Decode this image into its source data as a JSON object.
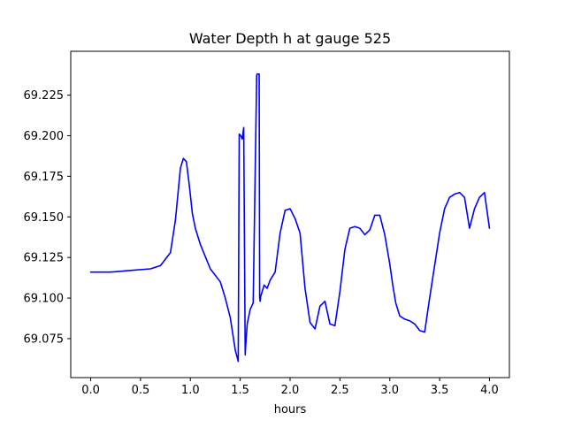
{
  "chart_data": {
    "type": "line",
    "title": "Water Depth h at gauge 525",
    "xlabel": "hours",
    "ylabel": "",
    "xlim": [
      -0.2,
      4.2
    ],
    "ylim": [
      69.051,
      69.252
    ],
    "grid": false,
    "legend": "none",
    "xticks": [
      0.0,
      0.5,
      1.0,
      1.5,
      2.0,
      2.5,
      3.0,
      3.5,
      4.0
    ],
    "xtick_labels": [
      "0.0",
      "0.5",
      "1.0",
      "1.5",
      "2.0",
      "2.5",
      "3.0",
      "3.5",
      "4.0"
    ],
    "yticks": [
      69.075,
      69.1,
      69.125,
      69.15,
      69.175,
      69.2,
      69.225
    ],
    "ytick_labels": [
      "69.075",
      "69.100",
      "69.125",
      "69.150",
      "69.175",
      "69.200",
      "69.225"
    ],
    "colors": {
      "line": "#0000ff",
      "axes": "#000000",
      "background": "#ffffff"
    },
    "series": [
      {
        "x": [
          0.0,
          0.2,
          0.4,
          0.6,
          0.7,
          0.8,
          0.85,
          0.9,
          0.93,
          0.96,
          0.99,
          1.02,
          1.05,
          1.1,
          1.2,
          1.3,
          1.35,
          1.4,
          1.45,
          1.48,
          1.49,
          1.505,
          1.52,
          1.535,
          1.55,
          1.555,
          1.57,
          1.6,
          1.63,
          1.665,
          1.67,
          1.69,
          1.695,
          1.7,
          1.705,
          1.72,
          1.74,
          1.77,
          1.8,
          1.85,
          1.9,
          1.95,
          2.0,
          2.05,
          2.1,
          2.15,
          2.2,
          2.25,
          2.3,
          2.35,
          2.4,
          2.45,
          2.5,
          2.55,
          2.6,
          2.65,
          2.7,
          2.75,
          2.8,
          2.85,
          2.9,
          2.95,
          3.0,
          3.03,
          3.06,
          3.1,
          3.15,
          3.2,
          3.25,
          3.3,
          3.35,
          3.4,
          3.45,
          3.5,
          3.55,
          3.6,
          3.65,
          3.7,
          3.75,
          3.8,
          3.85,
          3.9,
          3.95,
          4.0
        ],
        "y": [
          69.116,
          69.116,
          69.117,
          69.118,
          69.12,
          69.128,
          69.148,
          69.18,
          69.186,
          69.184,
          69.169,
          69.152,
          69.143,
          69.133,
          69.118,
          69.11,
          69.1,
          69.088,
          69.068,
          69.061,
          69.201,
          69.2,
          69.198,
          69.205,
          69.065,
          69.071,
          69.084,
          69.093,
          69.097,
          69.237,
          69.238,
          69.238,
          69.1,
          69.098,
          69.101,
          69.104,
          69.108,
          69.106,
          69.111,
          69.116,
          69.14,
          69.154,
          69.155,
          69.149,
          69.14,
          69.106,
          69.085,
          69.081,
          69.095,
          69.098,
          69.084,
          69.083,
          69.104,
          69.13,
          69.143,
          69.144,
          69.143,
          69.139,
          69.142,
          69.151,
          69.151,
          69.139,
          69.121,
          69.108,
          69.097,
          69.089,
          69.087,
          69.086,
          69.084,
          69.08,
          69.079,
          69.1,
          69.12,
          69.14,
          69.155,
          69.162,
          69.164,
          69.165,
          69.162,
          69.143,
          69.155,
          69.162,
          69.165,
          69.143
        ]
      }
    ]
  }
}
